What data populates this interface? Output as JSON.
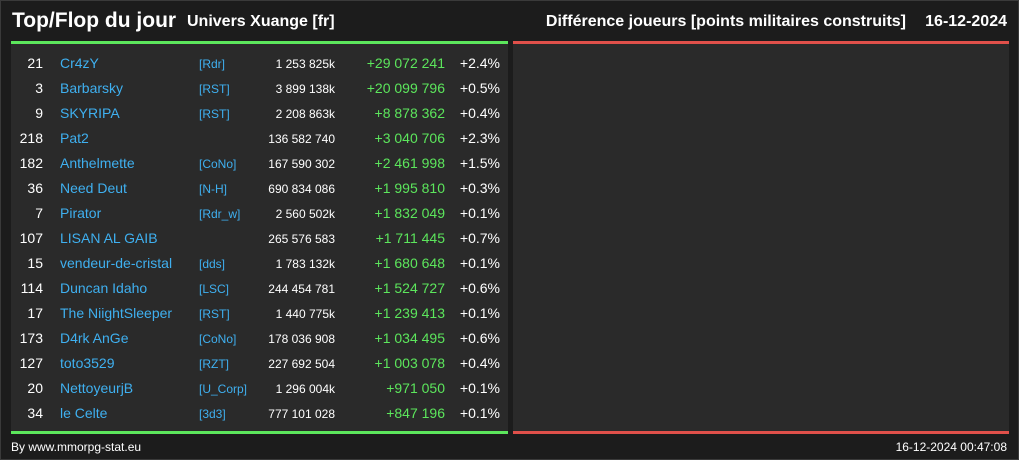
{
  "header": {
    "title": "Top/Flop du jour",
    "universe": "Univers Xuange [fr]",
    "metric": "Différence joueurs [points militaires construits]",
    "date": "16-12-2024"
  },
  "top": [
    {
      "rank": "21",
      "name": "Cr4zY",
      "alliance": "[Rdr]",
      "total": "1 253 825k",
      "diff": "+29 072 241",
      "pct": "+2.4%"
    },
    {
      "rank": "3",
      "name": "Barbarsky",
      "alliance": "[RST]",
      "total": "3 899 138k",
      "diff": "+20 099 796",
      "pct": "+0.5%"
    },
    {
      "rank": "9",
      "name": "SKYRIPA",
      "alliance": "[RST]",
      "total": "2 208 863k",
      "diff": "+8 878 362",
      "pct": "+0.4%"
    },
    {
      "rank": "218",
      "name": "Pat2",
      "alliance": "",
      "total": "136 582 740",
      "diff": "+3 040 706",
      "pct": "+2.3%"
    },
    {
      "rank": "182",
      "name": "Anthelmette",
      "alliance": "[CoNo]",
      "total": "167 590 302",
      "diff": "+2 461 998",
      "pct": "+1.5%"
    },
    {
      "rank": "36",
      "name": "Need Deut",
      "alliance": "[N-H]",
      "total": "690 834 086",
      "diff": "+1 995 810",
      "pct": "+0.3%"
    },
    {
      "rank": "7",
      "name": "Pirator",
      "alliance": "[Rdr_w]",
      "total": "2 560 502k",
      "diff": "+1 832 049",
      "pct": "+0.1%"
    },
    {
      "rank": "107",
      "name": "LISAN AL GAIB",
      "alliance": "",
      "total": "265 576 583",
      "diff": "+1 711 445",
      "pct": "+0.7%"
    },
    {
      "rank": "15",
      "name": "vendeur-de-cristal",
      "alliance": "[dds]",
      "total": "1 783 132k",
      "diff": "+1 680 648",
      "pct": "+0.1%"
    },
    {
      "rank": "114",
      "name": "Duncan Idaho",
      "alliance": "[LSC]",
      "total": "244 454 781",
      "diff": "+1 524 727",
      "pct": "+0.6%"
    },
    {
      "rank": "17",
      "name": "The NiightSleeper",
      "alliance": "[RST]",
      "total": "1 440 775k",
      "diff": "+1 239 413",
      "pct": "+0.1%"
    },
    {
      "rank": "173",
      "name": "D4rk AnGe",
      "alliance": "[CoNo]",
      "total": "178 036 908",
      "diff": "+1 034 495",
      "pct": "+0.6%"
    },
    {
      "rank": "127",
      "name": "toto3529",
      "alliance": "[RZT]",
      "total": "227 692 504",
      "diff": "+1 003 078",
      "pct": "+0.4%"
    },
    {
      "rank": "20",
      "name": "NettoyeurjB",
      "alliance": "[U_Corp]",
      "total": "1 296 004k",
      "diff": "+971 050",
      "pct": "+0.1%"
    },
    {
      "rank": "34",
      "name": "le Celte",
      "alliance": "[3d3]",
      "total": "777 101 028",
      "diff": "+847 196",
      "pct": "+0.1%"
    }
  ],
  "footer": {
    "credit": "By www.mmorpg-stat.eu",
    "timestamp": "16-12-2024 00:47:08"
  },
  "colors": {
    "top_accent": "#5ce65c",
    "flop_accent": "#e0504a",
    "link": "#3fb0f0",
    "panel_bg": "#2a2a2a"
  }
}
